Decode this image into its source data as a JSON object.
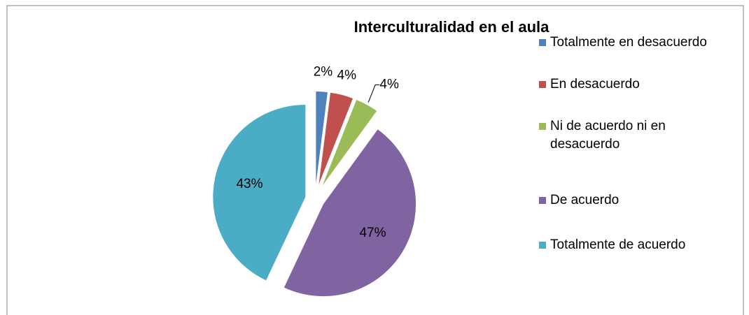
{
  "chart_data": {
    "type": "pie",
    "title": "Interculturalidad en el aula",
    "categories": [
      "Totalmente en desacuerdo",
      "En desacuerdo",
      "Ni de acuerdo ni en desacuerdo",
      "De acuerdo",
      "Totalmente de acuerdo"
    ],
    "values": [
      2,
      4,
      4,
      47,
      43
    ],
    "value_labels": [
      "2%",
      "4%",
      "4%",
      "47%",
      "43%"
    ],
    "colors": [
      "#4f81bd",
      "#c0504d",
      "#9bbb59",
      "#8064a2",
      "#4bacc6"
    ],
    "legend": "right"
  }
}
